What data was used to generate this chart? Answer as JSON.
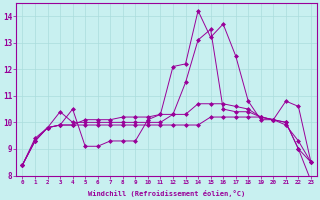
{
  "xlabel": "Windchill (Refroidissement éolien,°C)",
  "ylabel": "",
  "bg_color": "#c8f0f0",
  "line_color": "#990099",
  "grid_color": "#aadddd",
  "xlim": [
    -0.5,
    23.5
  ],
  "ylim": [
    8.0,
    14.5
  ],
  "yticks": [
    8,
    9,
    10,
    11,
    12,
    13,
    14
  ],
  "xticks": [
    0,
    1,
    2,
    3,
    4,
    5,
    6,
    7,
    8,
    9,
    10,
    11,
    12,
    13,
    14,
    15,
    16,
    17,
    18,
    19,
    20,
    21,
    22,
    23
  ],
  "lines": [
    {
      "x": [
        0,
        1,
        2,
        3,
        4,
        5,
        6,
        7,
        8,
        9,
        10,
        11,
        12,
        13,
        14,
        15,
        16,
        17,
        18,
        19,
        20,
        21,
        22,
        23
      ],
      "y": [
        8.4,
        9.4,
        9.8,
        9.9,
        10.5,
        9.1,
        9.1,
        9.3,
        9.3,
        9.3,
        10.1,
        10.3,
        12.1,
        12.2,
        14.2,
        13.2,
        13.7,
        12.5,
        10.8,
        10.1,
        10.1,
        10.8,
        10.6,
        8.5
      ],
      "marker": "D",
      "markersize": 2.0
    },
    {
      "x": [
        0,
        1,
        2,
        3,
        4,
        5,
        6,
        7,
        8,
        9,
        10,
        11,
        12,
        13,
        14,
        15,
        16,
        17,
        18,
        19,
        20,
        21,
        22,
        23
      ],
      "y": [
        8.4,
        9.3,
        9.8,
        9.9,
        9.9,
        10.1,
        10.1,
        10.1,
        10.2,
        10.2,
        10.2,
        10.3,
        10.3,
        11.5,
        13.1,
        13.5,
        10.5,
        10.4,
        10.4,
        10.2,
        10.1,
        10.0,
        9.0,
        7.8
      ],
      "marker": "D",
      "markersize": 2.0
    },
    {
      "x": [
        0,
        1,
        2,
        3,
        4,
        5,
        6,
        7,
        8,
        9,
        10,
        11,
        12,
        13,
        14,
        15,
        16,
        17,
        18,
        19,
        20,
        21,
        22,
        23
      ],
      "y": [
        8.4,
        9.3,
        9.8,
        10.4,
        10.0,
        10.0,
        10.0,
        10.0,
        10.0,
        10.0,
        10.0,
        10.0,
        10.3,
        10.3,
        10.7,
        10.7,
        10.7,
        10.6,
        10.5,
        10.2,
        10.1,
        10.0,
        9.0,
        8.5
      ],
      "marker": "D",
      "markersize": 2.0
    },
    {
      "x": [
        0,
        1,
        2,
        3,
        4,
        5,
        6,
        7,
        8,
        9,
        10,
        11,
        12,
        13,
        14,
        15,
        16,
        17,
        18,
        19,
        20,
        21,
        22,
        23
      ],
      "y": [
        8.4,
        9.3,
        9.8,
        9.9,
        9.9,
        9.9,
        9.9,
        9.9,
        9.9,
        9.9,
        9.9,
        9.9,
        9.9,
        9.9,
        9.9,
        10.2,
        10.2,
        10.2,
        10.2,
        10.2,
        10.1,
        9.9,
        9.3,
        8.5
      ],
      "marker": "D",
      "markersize": 2.0
    }
  ]
}
